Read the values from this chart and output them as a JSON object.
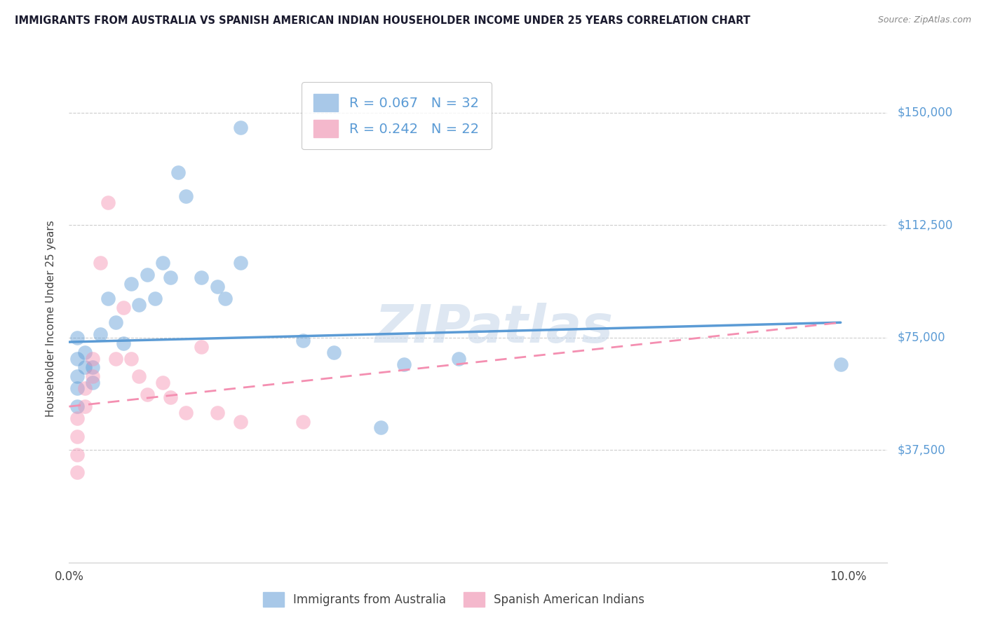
{
  "title": "IMMIGRANTS FROM AUSTRALIA VS SPANISH AMERICAN INDIAN HOUSEHOLDER INCOME UNDER 25 YEARS CORRELATION CHART",
  "source": "Source: ZipAtlas.com",
  "ylabel": "Householder Income Under 25 years",
  "watermark": "ZIPatlas",
  "ytick_labels": [
    "$37,500",
    "$75,000",
    "$112,500",
    "$150,000"
  ],
  "ytick_values": [
    37500,
    75000,
    112500,
    150000
  ],
  "ymin": 0,
  "ymax": 162500,
  "xmin": 0.0,
  "xmax": 0.105,
  "blue_scatter_x": [
    0.001,
    0.001,
    0.001,
    0.001,
    0.001,
    0.002,
    0.002,
    0.003,
    0.003,
    0.004,
    0.005,
    0.006,
    0.007,
    0.008,
    0.009,
    0.01,
    0.011,
    0.012,
    0.013,
    0.014,
    0.015,
    0.017,
    0.019,
    0.02,
    0.022,
    0.022,
    0.03,
    0.034,
    0.04,
    0.043,
    0.05,
    0.099
  ],
  "blue_scatter_y": [
    75000,
    68000,
    62000,
    58000,
    52000,
    70000,
    65000,
    65000,
    60000,
    76000,
    88000,
    80000,
    73000,
    93000,
    86000,
    96000,
    88000,
    100000,
    95000,
    130000,
    122000,
    95000,
    92000,
    88000,
    145000,
    100000,
    74000,
    70000,
    45000,
    66000,
    68000,
    66000
  ],
  "pink_scatter_x": [
    0.001,
    0.001,
    0.001,
    0.001,
    0.002,
    0.002,
    0.003,
    0.003,
    0.004,
    0.005,
    0.006,
    0.007,
    0.008,
    0.009,
    0.01,
    0.012,
    0.013,
    0.015,
    0.017,
    0.019,
    0.022,
    0.03
  ],
  "pink_scatter_y": [
    48000,
    42000,
    36000,
    30000,
    52000,
    58000,
    62000,
    68000,
    100000,
    120000,
    68000,
    85000,
    68000,
    62000,
    56000,
    60000,
    55000,
    50000,
    72000,
    50000,
    47000,
    47000
  ],
  "blue_line_x": [
    0.0,
    0.099
  ],
  "blue_line_y": [
    73500,
    80000
  ],
  "pink_line_x": [
    0.0,
    0.099
  ],
  "pink_line_y": [
    52000,
    80000
  ],
  "title_color": "#1a1a2e",
  "blue_color": "#5b9bd5",
  "pink_color": "#f48fb1",
  "grid_color": "#cccccc",
  "right_label_color": "#5b9bd5",
  "background_color": "#ffffff"
}
